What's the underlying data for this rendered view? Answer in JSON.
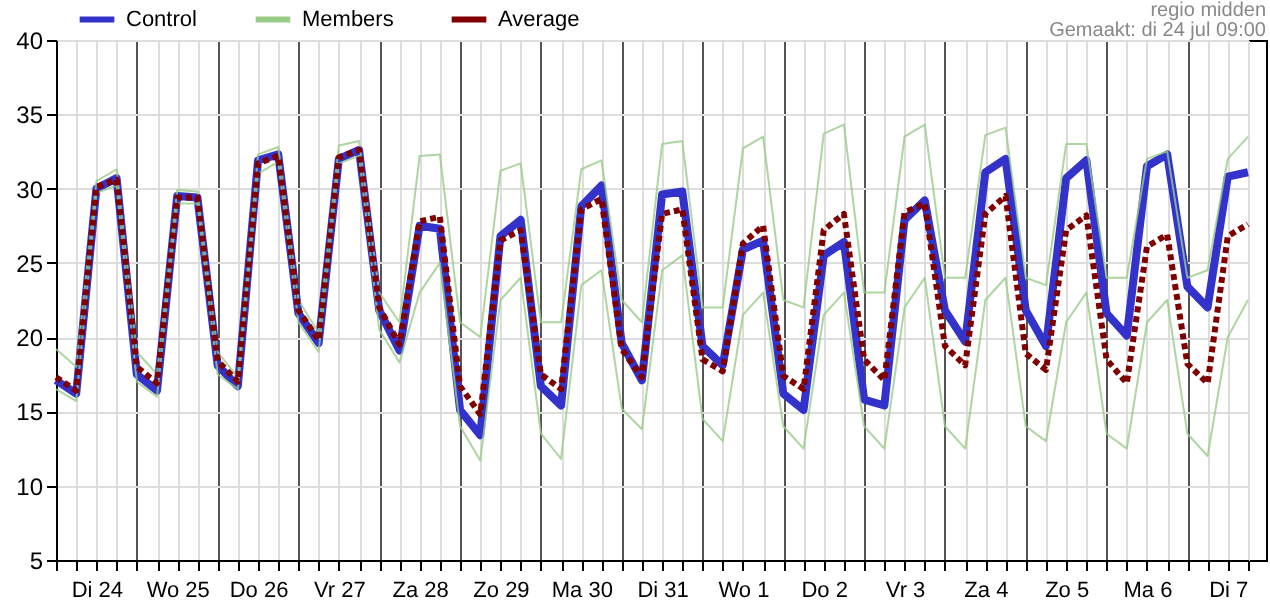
{
  "chart_data": {
    "type": "line",
    "annotations": [
      "regio midden",
      "Gemaakt: di 24 jul 09:00"
    ],
    "categories": [
      null,
      null,
      "Di 24",
      null,
      null,
      null,
      "Wo 25",
      null,
      null,
      null,
      "Do 26",
      null,
      null,
      null,
      "Vr 27",
      null,
      null,
      null,
      "Za 28",
      null,
      null,
      null,
      "Zo 29",
      null,
      null,
      null,
      "Ma 30",
      null,
      null,
      null,
      "Di 31",
      null,
      null,
      null,
      "Wo 1",
      null,
      null,
      null,
      "Do 2",
      null,
      null,
      null,
      "Vr 3",
      null,
      null,
      null,
      "Za 4",
      null,
      null,
      null,
      "Zo 5",
      null,
      null,
      null,
      "Ma 6",
      null,
      null,
      null,
      "Di 7",
      null
    ],
    "ylim": [
      5,
      40
    ],
    "yticks": [
      5,
      10,
      15,
      20,
      25,
      30,
      35,
      40
    ],
    "grid": true,
    "legend": "top left",
    "series": [
      {
        "name": "Control",
        "color": "#3333cc",
        "line_style": "solid",
        "values": [
          17.1,
          16.2,
          30.0,
          30.7,
          17.5,
          16.4,
          29.5,
          29.4,
          18.1,
          16.7,
          31.9,
          32.3,
          21.6,
          19.6,
          32.0,
          32.6,
          21.8,
          19.1,
          27.5,
          27.3,
          15.1,
          13.4,
          26.8,
          27.9,
          16.7,
          15.4,
          28.8,
          30.2,
          19.6,
          17.1,
          29.6,
          29.8,
          19.4,
          18.1,
          25.9,
          26.5,
          16.2,
          15.1,
          25.5,
          26.4,
          15.8,
          15.4,
          27.9,
          29.2,
          21.8,
          19.7,
          31.1,
          32.0,
          21.8,
          19.4,
          30.7,
          31.9,
          21.6,
          20.1,
          31.5,
          32.3,
          23.4,
          22.0,
          30.8,
          31.1
        ]
      },
      {
        "name": "Members",
        "color": "#99cc88",
        "line_style": "solid",
        "values": [
          19.2,
          18.0,
          30.5,
          31.3,
          19.0,
          17.5,
          29.9,
          29.8,
          19.0,
          17.3,
          32.3,
          32.8,
          22.5,
          20.3,
          32.9,
          33.2,
          23.0,
          21.0,
          32.2,
          32.3,
          21.0,
          20.0,
          31.2,
          31.7,
          21.0,
          21.0,
          31.3,
          31.9,
          22.5,
          21.0,
          33.0,
          33.2,
          22.0,
          22.0,
          32.7,
          33.5,
          22.5,
          22.0,
          33.7,
          34.3,
          23.0,
          23.0,
          33.5,
          34.3,
          24.0,
          24.0,
          33.6,
          34.1,
          24.0,
          23.5,
          33.0,
          33.0,
          24.0,
          24.0,
          32.0,
          32.5,
          24.0,
          24.5,
          32.0,
          33.5
        ]
      },
      {
        "color": "#99cc88",
        "line_style": "solid",
        "values": [
          16.5,
          15.7,
          29.7,
          30.2,
          17.0,
          16.0,
          29.0,
          29.0,
          17.5,
          16.5,
          31.0,
          31.8,
          21.0,
          19.0,
          31.7,
          32.2,
          20.5,
          18.3,
          23.0,
          25.0,
          14.0,
          11.7,
          22.5,
          24.0,
          13.5,
          11.8,
          23.5,
          24.5,
          15.2,
          13.8,
          24.5,
          25.5,
          14.5,
          13.0,
          21.5,
          23.0,
          14.0,
          12.5,
          21.5,
          23.0,
          14.0,
          12.5,
          22.0,
          24.0,
          14.0,
          12.5,
          22.5,
          24.0,
          14.0,
          13.0,
          21.0,
          23.0,
          13.5,
          12.5,
          21.0,
          22.5,
          13.5,
          12.0,
          20.0,
          22.5
        ]
      },
      {
        "name": "Average",
        "color": "#800000",
        "line_style": "dotted",
        "values": [
          17.3,
          16.4,
          30.1,
          30.6,
          18.0,
          16.9,
          29.4,
          29.4,
          18.4,
          17.0,
          31.7,
          32.2,
          21.8,
          19.8,
          32.1,
          32.6,
          22.0,
          19.5,
          27.8,
          28.1,
          16.7,
          14.8,
          26.5,
          27.2,
          17.5,
          16.5,
          28.6,
          29.3,
          19.2,
          17.3,
          28.3,
          28.6,
          18.5,
          17.7,
          26.3,
          27.5,
          17.4,
          16.5,
          27.2,
          28.3,
          18.5,
          17.1,
          28.4,
          29.0,
          19.4,
          18.1,
          28.3,
          29.5,
          18.9,
          17.8,
          27.2,
          28.2,
          18.5,
          16.9,
          26.1,
          26.9,
          18.2,
          16.9,
          26.8,
          27.6
        ]
      }
    ]
  }
}
